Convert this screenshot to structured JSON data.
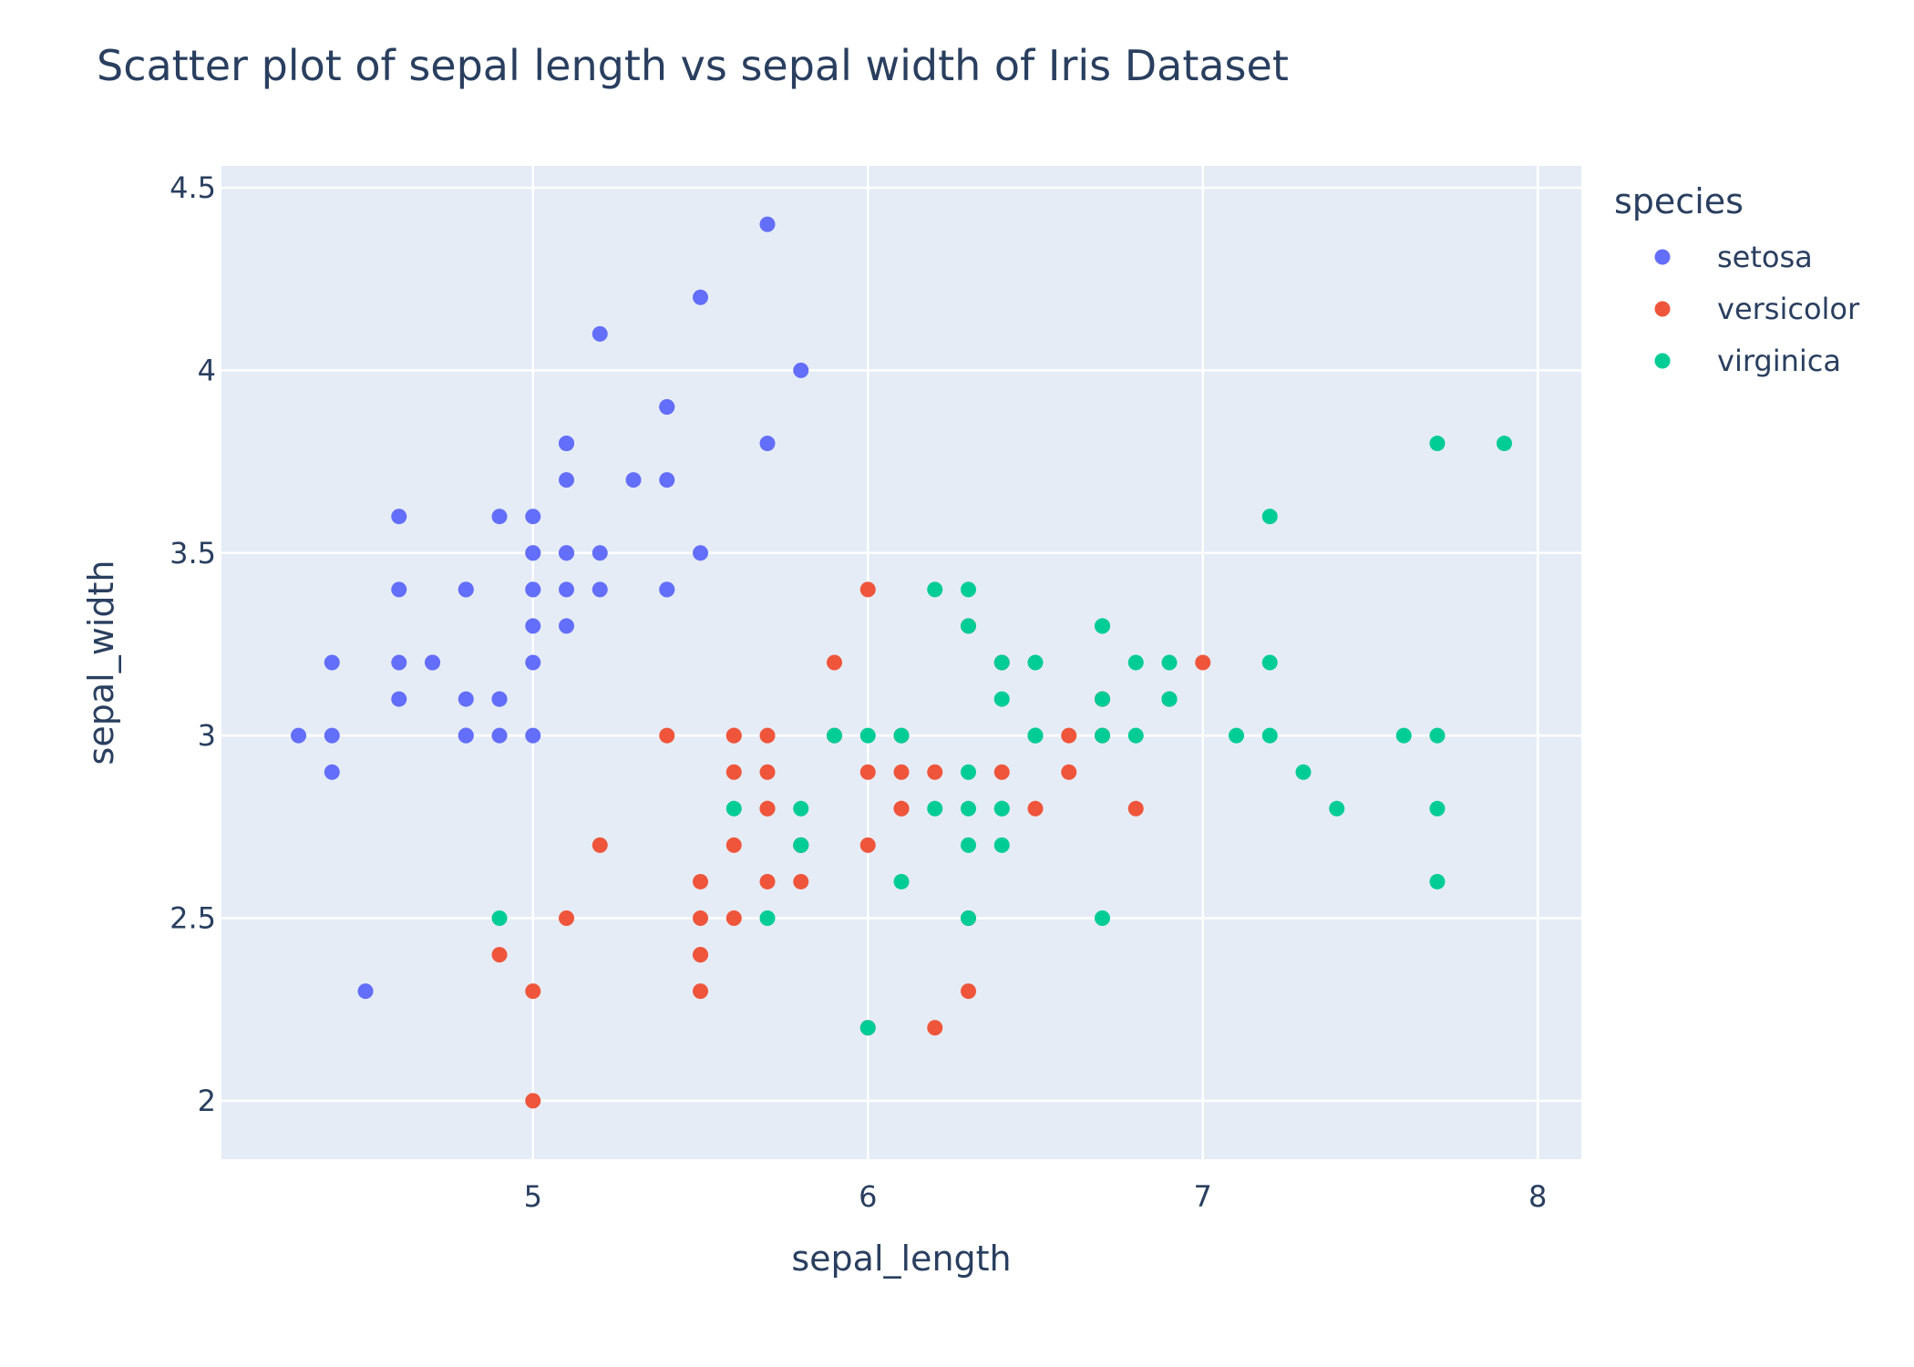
{
  "chart_data": {
    "type": "scatter",
    "title": "Scatter plot of sepal length vs sepal width of Iris Dataset",
    "xlabel": "sepal_length",
    "ylabel": "sepal_width",
    "xlim": [
      4.07,
      8.13
    ],
    "ylim": [
      1.84,
      4.56
    ],
    "x_ticks": [
      5,
      6,
      7,
      8
    ],
    "y_ticks": [
      2,
      2.5,
      3,
      3.5,
      4,
      4.5
    ],
    "x_tick_labels": [
      "5",
      "6",
      "7",
      "8"
    ],
    "y_tick_labels": [
      "2",
      "2.5",
      "3",
      "3.5",
      "4",
      "4.5"
    ],
    "grid": true,
    "legend_title": "species",
    "legend_placement": "right",
    "plot_bgcolor": "#e5ecf6",
    "series": [
      {
        "name": "setosa",
        "color": "#636efa",
        "points": [
          [
            5.1,
            3.5
          ],
          [
            4.9,
            3.0
          ],
          [
            4.7,
            3.2
          ],
          [
            4.6,
            3.1
          ],
          [
            5.0,
            3.6
          ],
          [
            5.4,
            3.9
          ],
          [
            4.6,
            3.4
          ],
          [
            5.0,
            3.4
          ],
          [
            4.4,
            2.9
          ],
          [
            4.9,
            3.1
          ],
          [
            5.4,
            3.7
          ],
          [
            4.8,
            3.4
          ],
          [
            4.8,
            3.0
          ],
          [
            4.3,
            3.0
          ],
          [
            5.8,
            4.0
          ],
          [
            5.7,
            4.4
          ],
          [
            5.4,
            3.9
          ],
          [
            5.1,
            3.5
          ],
          [
            5.7,
            3.8
          ],
          [
            5.1,
            3.8
          ],
          [
            5.4,
            3.4
          ],
          [
            5.1,
            3.7
          ],
          [
            4.6,
            3.6
          ],
          [
            5.1,
            3.3
          ],
          [
            4.8,
            3.4
          ],
          [
            5.0,
            3.0
          ],
          [
            5.0,
            3.4
          ],
          [
            5.2,
            3.5
          ],
          [
            5.2,
            3.4
          ],
          [
            4.7,
            3.2
          ],
          [
            4.8,
            3.1
          ],
          [
            5.4,
            3.4
          ],
          [
            5.2,
            4.1
          ],
          [
            5.5,
            4.2
          ],
          [
            4.9,
            3.1
          ],
          [
            5.0,
            3.2
          ],
          [
            5.5,
            3.5
          ],
          [
            4.9,
            3.6
          ],
          [
            4.4,
            3.0
          ],
          [
            5.1,
            3.4
          ],
          [
            5.0,
            3.5
          ],
          [
            4.5,
            2.3
          ],
          [
            4.4,
            3.2
          ],
          [
            5.0,
            3.5
          ],
          [
            5.1,
            3.8
          ],
          [
            4.8,
            3.0
          ],
          [
            5.1,
            3.8
          ],
          [
            4.6,
            3.2
          ],
          [
            5.3,
            3.7
          ],
          [
            5.0,
            3.3
          ]
        ]
      },
      {
        "name": "versicolor",
        "color": "#ef553b",
        "points": [
          [
            7.0,
            3.2
          ],
          [
            6.4,
            3.2
          ],
          [
            6.9,
            3.1
          ],
          [
            5.5,
            2.3
          ],
          [
            6.5,
            2.8
          ],
          [
            5.7,
            2.8
          ],
          [
            6.3,
            3.3
          ],
          [
            4.9,
            2.4
          ],
          [
            6.6,
            2.9
          ],
          [
            5.2,
            2.7
          ],
          [
            5.0,
            2.0
          ],
          [
            5.9,
            3.0
          ],
          [
            6.0,
            2.2
          ],
          [
            6.1,
            2.9
          ],
          [
            5.6,
            2.9
          ],
          [
            6.7,
            3.1
          ],
          [
            5.6,
            3.0
          ],
          [
            5.8,
            2.7
          ],
          [
            6.2,
            2.2
          ],
          [
            5.6,
            2.5
          ],
          [
            5.9,
            3.2
          ],
          [
            6.1,
            2.8
          ],
          [
            6.3,
            2.5
          ],
          [
            6.1,
            2.8
          ],
          [
            6.4,
            2.9
          ],
          [
            6.6,
            3.0
          ],
          [
            6.8,
            2.8
          ],
          [
            6.7,
            3.0
          ],
          [
            6.0,
            2.9
          ],
          [
            5.7,
            2.6
          ],
          [
            5.5,
            2.4
          ],
          [
            5.5,
            2.4
          ],
          [
            5.8,
            2.7
          ],
          [
            6.0,
            2.7
          ],
          [
            5.4,
            3.0
          ],
          [
            6.0,
            3.4
          ],
          [
            6.7,
            3.1
          ],
          [
            6.3,
            2.3
          ],
          [
            5.6,
            3.0
          ],
          [
            5.5,
            2.5
          ],
          [
            5.5,
            2.6
          ],
          [
            6.1,
            3.0
          ],
          [
            5.8,
            2.6
          ],
          [
            5.0,
            2.3
          ],
          [
            5.6,
            2.7
          ],
          [
            5.7,
            3.0
          ],
          [
            5.7,
            2.9
          ],
          [
            6.2,
            2.9
          ],
          [
            5.1,
            2.5
          ],
          [
            5.7,
            2.8
          ]
        ]
      },
      {
        "name": "virginica",
        "color": "#00cc96",
        "points": [
          [
            6.3,
            3.3
          ],
          [
            5.8,
            2.7
          ],
          [
            7.1,
            3.0
          ],
          [
            6.3,
            2.9
          ],
          [
            6.5,
            3.0
          ],
          [
            7.6,
            3.0
          ],
          [
            4.9,
            2.5
          ],
          [
            7.3,
            2.9
          ],
          [
            6.7,
            2.5
          ],
          [
            7.2,
            3.6
          ],
          [
            6.5,
            3.2
          ],
          [
            6.4,
            2.7
          ],
          [
            6.8,
            3.0
          ],
          [
            5.7,
            2.5
          ],
          [
            5.8,
            2.8
          ],
          [
            6.4,
            3.2
          ],
          [
            6.5,
            3.0
          ],
          [
            7.7,
            3.8
          ],
          [
            7.7,
            2.6
          ],
          [
            6.0,
            2.2
          ],
          [
            6.9,
            3.2
          ],
          [
            5.6,
            2.8
          ],
          [
            7.7,
            2.8
          ],
          [
            6.3,
            2.7
          ],
          [
            6.7,
            3.3
          ],
          [
            7.2,
            3.2
          ],
          [
            6.2,
            2.8
          ],
          [
            6.1,
            3.0
          ],
          [
            6.4,
            2.8
          ],
          [
            7.2,
            3.0
          ],
          [
            7.4,
            2.8
          ],
          [
            7.9,
            3.8
          ],
          [
            6.4,
            2.8
          ],
          [
            6.3,
            2.8
          ],
          [
            6.1,
            2.6
          ],
          [
            7.7,
            3.0
          ],
          [
            6.3,
            3.4
          ],
          [
            6.4,
            3.1
          ],
          [
            6.0,
            3.0
          ],
          [
            6.9,
            3.1
          ],
          [
            6.7,
            3.1
          ],
          [
            6.9,
            3.1
          ],
          [
            5.8,
            2.7
          ],
          [
            6.8,
            3.2
          ],
          [
            6.7,
            3.3
          ],
          [
            6.7,
            3.0
          ],
          [
            6.3,
            2.5
          ],
          [
            6.5,
            3.0
          ],
          [
            6.2,
            3.4
          ],
          [
            5.9,
            3.0
          ]
        ]
      }
    ]
  }
}
